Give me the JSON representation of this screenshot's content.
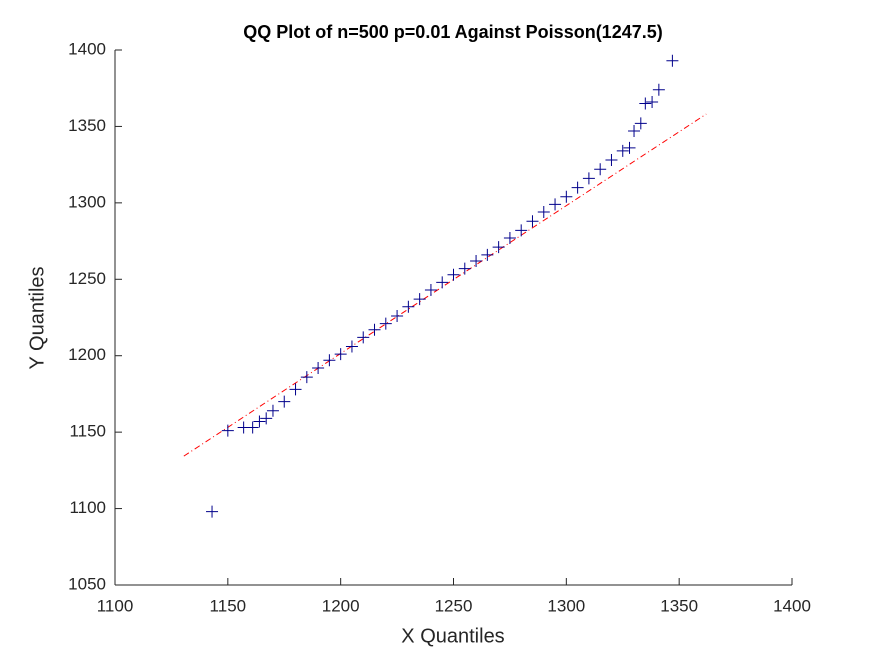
{
  "chart_data": {
    "type": "scatter",
    "title": "QQ Plot of n=500 p=0.01 Against Poisson(1247.5)",
    "x_label": "X Quantiles",
    "y_label": "Y Quantiles",
    "series": [
      {
        "color": "#00008b",
        "x": [
          1143,
          1150,
          1157,
          1161,
          1164,
          1167,
          1170,
          1175,
          1180,
          1185,
          1190,
          1195,
          1200,
          1205,
          1210,
          1215,
          1220,
          1225,
          1230,
          1235,
          1240,
          1245,
          1250,
          1255,
          1260,
          1265,
          1270,
          1275,
          1280,
          1285,
          1290,
          1295,
          1300,
          1305,
          1310,
          1315,
          1320,
          1325,
          1328,
          1330,
          1333,
          1335,
          1338,
          1341,
          1347
        ],
        "values": [
          1098,
          1151,
          1153,
          1153,
          1157,
          1159,
          1164,
          1170,
          1178,
          1186,
          1192,
          1197,
          1201,
          1206,
          1212,
          1217,
          1221,
          1226,
          1232,
          1237,
          1243,
          1248,
          1253,
          1257,
          1262,
          1266,
          1271,
          1277,
          1282,
          1288,
          1294,
          1299,
          1304,
          1310,
          1316,
          1322,
          1328,
          1334,
          1336,
          1347,
          1352,
          1365,
          1366,
          1374,
          1393
        ]
      }
    ],
    "reference_line": {
      "color": "#ff0000",
      "x": [
        1130.5,
        1362
      ],
      "values": [
        1134.3,
        1358.1
      ]
    },
    "xlim": [
      1100,
      1400
    ],
    "xticks": [
      1100,
      1150,
      1200,
      1250,
      1300,
      1350,
      1400
    ],
    "ylim": [
      1050,
      1400
    ],
    "yticks": [
      1050,
      1100,
      1150,
      1200,
      1250,
      1300,
      1350,
      1400
    ]
  }
}
